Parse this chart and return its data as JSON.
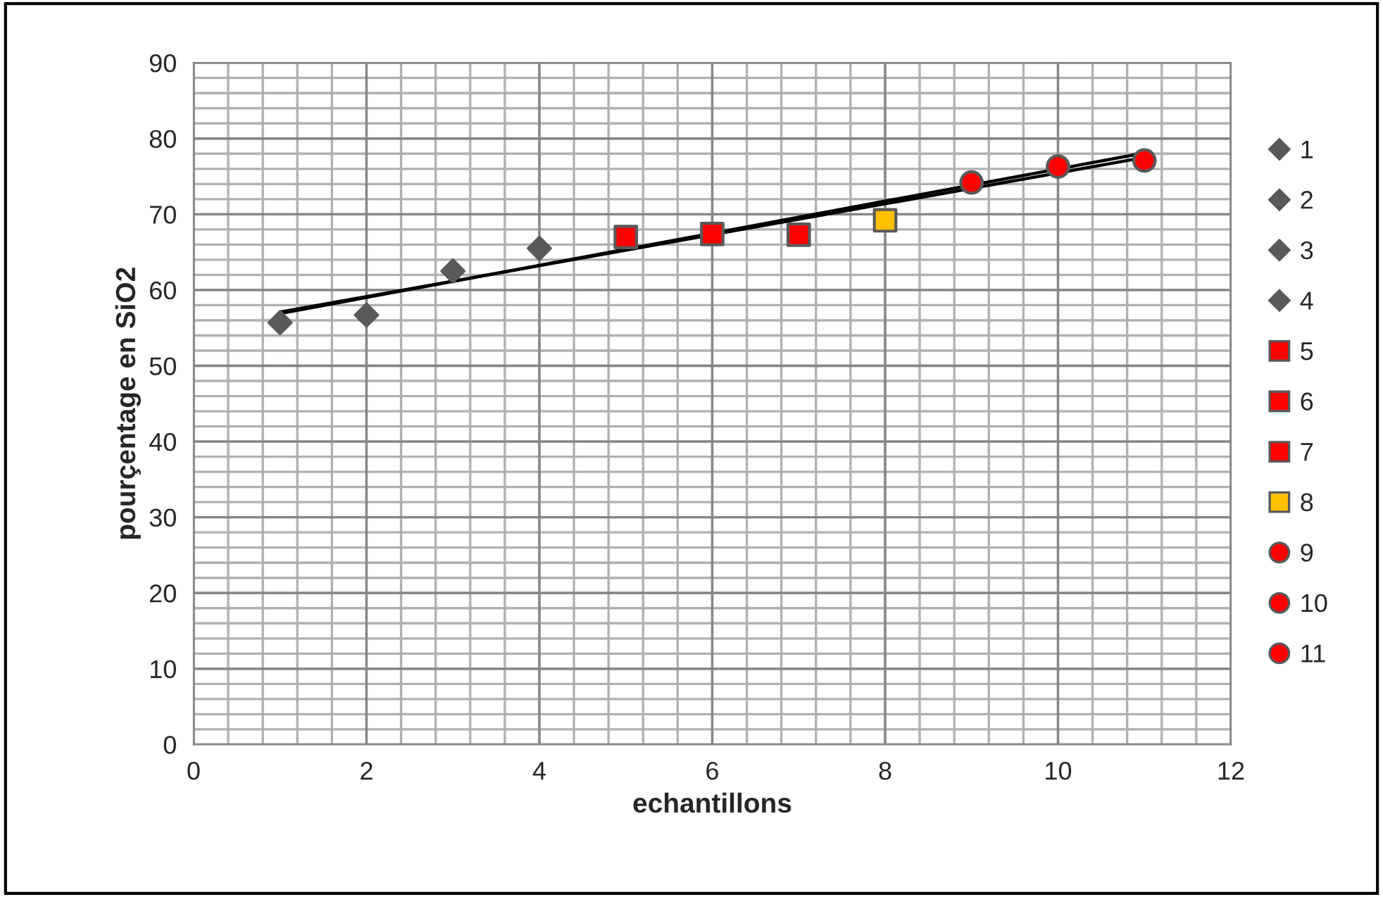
{
  "chart_data": {
    "type": "scatter",
    "xlabel": "echantillons",
    "ylabel": "pourçentage en SiO2",
    "xlim": [
      0,
      12
    ],
    "xticks": [
      0,
      2,
      4,
      6,
      8,
      10,
      12
    ],
    "ylim": [
      0,
      90
    ],
    "yticks": [
      0,
      10,
      20,
      30,
      40,
      50,
      60,
      70,
      80,
      90
    ],
    "grid": true,
    "legend": "right",
    "series": [
      {
        "name": "1",
        "color": "#595959",
        "marker": "diamond",
        "x": [
          1
        ],
        "values": [
          55.7
        ]
      },
      {
        "name": "2",
        "color": "#595959",
        "marker": "diamond",
        "x": [
          2
        ],
        "values": [
          56.7
        ]
      },
      {
        "name": "3",
        "color": "#595959",
        "marker": "diamond",
        "x": [
          3
        ],
        "values": [
          62.5
        ]
      },
      {
        "name": "4",
        "color": "#595959",
        "marker": "diamond",
        "x": [
          4
        ],
        "values": [
          65.5
        ]
      },
      {
        "name": "5",
        "color": "#ff0000",
        "marker": "square",
        "x": [
          5
        ],
        "values": [
          67.0
        ]
      },
      {
        "name": "6",
        "color": "#ff0000",
        "marker": "square",
        "x": [
          6
        ],
        "values": [
          67.4
        ]
      },
      {
        "name": "7",
        "color": "#ff0000",
        "marker": "square",
        "x": [
          7
        ],
        "values": [
          67.3
        ]
      },
      {
        "name": "8",
        "color": "#ffc000",
        "marker": "square",
        "x": [
          8
        ],
        "values": [
          69.2
        ]
      },
      {
        "name": "9",
        "color": "#ff0000",
        "marker": "circle",
        "x": [
          9
        ],
        "values": [
          74.2
        ]
      },
      {
        "name": "10",
        "color": "#ff0000",
        "marker": "circle",
        "x": [
          10
        ],
        "values": [
          76.3
        ]
      },
      {
        "name": "11",
        "color": "#ff0000",
        "marker": "circle",
        "x": [
          11
        ],
        "values": [
          77.1
        ]
      },
      {
        "type": "line",
        "color": "#000000",
        "marker": "none",
        "x": [
          1,
          11
        ],
        "values": [
          56.9,
          78.1
        ]
      },
      {
        "type": "line",
        "color": "#000000",
        "marker": "none",
        "x": [
          1,
          11
        ],
        "values": [
          57.1,
          77.5
        ]
      }
    ]
  }
}
